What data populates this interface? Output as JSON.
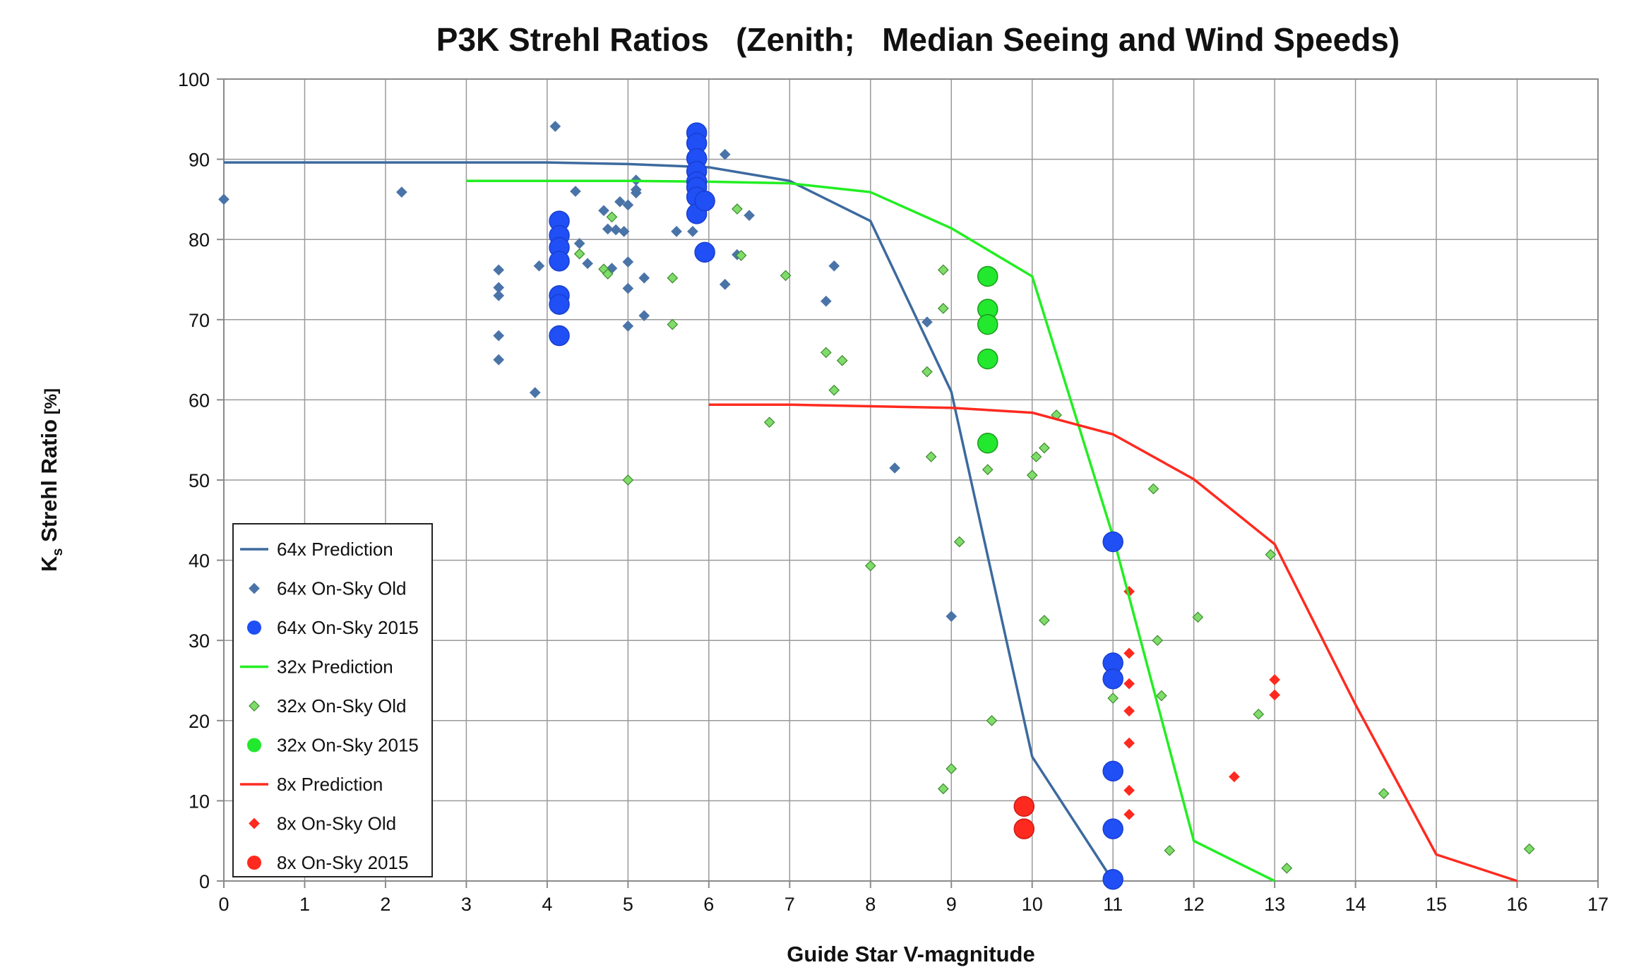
{
  "chart_data": {
    "type": "scatter",
    "title": "P3K Strehl Ratios   (Zenith;   Median Seeing and Wind Speeds)",
    "xlabel": "Guide Star V-magnitude",
    "ylabel_main": "K",
    "ylabel_sub": "s",
    "ylabel_rest": " Strehl Ratio",
    "ylabel_unit": " [%]",
    "xlim": [
      0,
      17
    ],
    "ylim": [
      0,
      100
    ],
    "xticks": [
      0,
      1,
      2,
      3,
      4,
      5,
      6,
      7,
      8,
      9,
      10,
      11,
      12,
      13,
      14,
      15,
      16,
      17
    ],
    "yticks": [
      0,
      10,
      20,
      30,
      40,
      50,
      60,
      70,
      80,
      90,
      100
    ],
    "grid": true,
    "legend_position": "bottom-left",
    "colors": {
      "pred64": "#3c6a9e",
      "old64": "#4a74a8",
      "new64": "#1f4ff5",
      "pred32": "#22ee22",
      "old32": "#7fdc6a",
      "new32": "#22e82e",
      "pred8": "#ff2a1f",
      "old8": "#ff2a1f",
      "new8": "#ff2a1f"
    },
    "series": [
      {
        "name": "64x Prediction",
        "kind": "line",
        "color_key": "pred64",
        "points": [
          [
            0,
            89.6
          ],
          [
            1,
            89.6
          ],
          [
            2,
            89.6
          ],
          [
            3,
            89.6
          ],
          [
            4,
            89.6
          ],
          [
            5,
            89.4
          ],
          [
            6,
            89.0
          ],
          [
            7,
            87.3
          ],
          [
            8,
            82.3
          ],
          [
            9,
            61.0
          ],
          [
            10,
            15.5
          ],
          [
            11,
            0
          ]
        ]
      },
      {
        "name": "64x On-Sky Old",
        "kind": "diamond",
        "color_key": "old64",
        "points": [
          [
            0,
            85
          ],
          [
            2.2,
            85.9
          ],
          [
            3.4,
            76.2
          ],
          [
            3.4,
            74
          ],
          [
            3.4,
            73
          ],
          [
            3.4,
            68
          ],
          [
            3.4,
            65
          ],
          [
            3.85,
            60.9
          ],
          [
            3.9,
            76.7
          ],
          [
            4.1,
            94.1
          ],
          [
            4.35,
            86
          ],
          [
            4.4,
            79.5
          ],
          [
            4.5,
            77
          ],
          [
            4.7,
            83.6
          ],
          [
            4.75,
            81.3
          ],
          [
            4.8,
            76.4
          ],
          [
            4.85,
            81.2
          ],
          [
            4.9,
            84.7
          ],
          [
            4.95,
            81
          ],
          [
            5.0,
            77.2
          ],
          [
            5.0,
            73.9
          ],
          [
            5.0,
            69.2
          ],
          [
            5.0,
            84.3
          ],
          [
            5.1,
            87.4
          ],
          [
            5.1,
            86.2
          ],
          [
            5.1,
            85.8
          ],
          [
            5.2,
            75.2
          ],
          [
            5.2,
            70.5
          ],
          [
            5.6,
            81
          ],
          [
            5.8,
            81
          ],
          [
            6.2,
            90.6
          ],
          [
            6.2,
            74.4
          ],
          [
            6.35,
            78.1
          ],
          [
            6.5,
            83
          ],
          [
            7.45,
            72.3
          ],
          [
            7.55,
            76.7
          ],
          [
            8.3,
            51.5
          ],
          [
            8.7,
            69.7
          ],
          [
            9.0,
            33
          ]
        ]
      },
      {
        "name": "64x On-Sky 2015",
        "kind": "circle",
        "color_key": "new64",
        "points": [
          [
            4.15,
            82.3
          ],
          [
            4.15,
            80.5
          ],
          [
            4.15,
            79
          ],
          [
            4.15,
            77.3
          ],
          [
            4.15,
            73
          ],
          [
            4.15,
            71.9
          ],
          [
            4.15,
            68
          ],
          [
            5.85,
            93.3
          ],
          [
            5.85,
            92
          ],
          [
            5.85,
            90.1
          ],
          [
            5.85,
            88.5
          ],
          [
            5.85,
            87.2
          ],
          [
            5.85,
            86.5
          ],
          [
            5.85,
            85.3
          ],
          [
            5.85,
            83.2
          ],
          [
            5.95,
            84.8
          ],
          [
            5.95,
            78.4
          ],
          [
            11,
            42.3
          ],
          [
            11,
            27.2
          ],
          [
            11,
            25.2
          ],
          [
            11,
            13.7
          ],
          [
            11,
            6.5
          ],
          [
            11,
            0.2
          ]
        ]
      },
      {
        "name": "32x Prediction",
        "kind": "line",
        "color_key": "pred32",
        "points": [
          [
            3,
            87.3
          ],
          [
            4,
            87.3
          ],
          [
            5,
            87.3
          ],
          [
            6,
            87.2
          ],
          [
            7,
            87.0
          ],
          [
            8,
            85.9
          ],
          [
            9,
            81.4
          ],
          [
            10,
            75.4
          ],
          [
            11,
            43
          ],
          [
            12,
            5
          ],
          [
            13,
            0
          ]
        ]
      },
      {
        "name": "32x On-Sky Old",
        "kind": "diamond",
        "color_key": "old32",
        "points": [
          [
            4.4,
            78.2
          ],
          [
            4.7,
            76.3
          ],
          [
            4.75,
            75.7
          ],
          [
            4.8,
            82.8
          ],
          [
            5.0,
            50
          ],
          [
            5.55,
            75.2
          ],
          [
            5.55,
            69.4
          ],
          [
            6.35,
            83.8
          ],
          [
            6.4,
            78
          ],
          [
            6.75,
            57.2
          ],
          [
            6.95,
            75.5
          ],
          [
            7.45,
            65.9
          ],
          [
            7.55,
            61.2
          ],
          [
            7.65,
            64.9
          ],
          [
            8.0,
            39.3
          ],
          [
            8.7,
            63.5
          ],
          [
            8.75,
            52.9
          ],
          [
            8.9,
            76.2
          ],
          [
            8.9,
            71.4
          ],
          [
            8.9,
            11.5
          ],
          [
            9.0,
            14
          ],
          [
            9.1,
            42.3
          ],
          [
            9.45,
            51.3
          ],
          [
            9.5,
            20
          ],
          [
            10.0,
            50.6
          ],
          [
            10.05,
            52.9
          ],
          [
            10.15,
            54
          ],
          [
            10.15,
            32.5
          ],
          [
            10.3,
            58.1
          ],
          [
            11.0,
            22.8
          ],
          [
            11.5,
            48.9
          ],
          [
            11.55,
            30
          ],
          [
            11.6,
            23.1
          ],
          [
            11.7,
            3.8
          ],
          [
            12.05,
            32.9
          ],
          [
            12.8,
            20.8
          ],
          [
            12.95,
            40.7
          ],
          [
            13.15,
            1.6
          ],
          [
            14.35,
            10.9
          ],
          [
            16.15,
            4
          ]
        ]
      },
      {
        "name": "32x On-Sky 2015",
        "kind": "circle",
        "color_key": "new32",
        "points": [
          [
            9.45,
            75.4
          ],
          [
            9.45,
            71.3
          ],
          [
            9.45,
            69.4
          ],
          [
            9.45,
            65.1
          ],
          [
            9.45,
            54.6
          ]
        ]
      },
      {
        "name": "8x Prediction",
        "kind": "line",
        "color_key": "pred8",
        "points": [
          [
            6,
            59.4
          ],
          [
            7,
            59.4
          ],
          [
            8,
            59.2
          ],
          [
            9,
            59.0
          ],
          [
            10,
            58.4
          ],
          [
            11,
            55.7
          ],
          [
            12,
            50.1
          ],
          [
            13,
            42.0
          ],
          [
            14,
            22.0
          ],
          [
            15,
            3.3
          ],
          [
            16,
            0
          ]
        ]
      },
      {
        "name": "8x On-Sky Old",
        "kind": "diamond",
        "color_key": "old8",
        "points": [
          [
            11.2,
            36.1
          ],
          [
            11.2,
            28.4
          ],
          [
            11.2,
            24.6
          ],
          [
            11.2,
            21.2
          ],
          [
            11.2,
            17.2
          ],
          [
            11.2,
            11.3
          ],
          [
            11.2,
            8.3
          ],
          [
            12.5,
            13
          ],
          [
            13.0,
            25.1
          ],
          [
            13.0,
            23.2
          ]
        ]
      },
      {
        "name": "8x On-Sky 2015",
        "kind": "circle",
        "color_key": "new8",
        "points": [
          [
            9.9,
            9.3
          ],
          [
            9.9,
            6.5
          ]
        ]
      }
    ]
  }
}
